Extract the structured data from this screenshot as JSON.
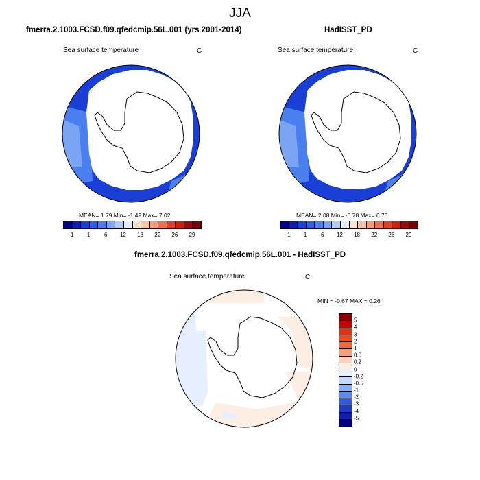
{
  "figure": {
    "title": "JJA"
  },
  "panels": {
    "model": {
      "title": "fmerra.2.1003.FCSD.f09.qfedcmip.56L.001 (yrs 2001-2014)",
      "variable": "Sea surface temperature",
      "units": "C",
      "stats": "MEAN=   1.79  Min=  -1.49  Max=   7.02"
    },
    "obs": {
      "title": "HadISST_PD",
      "variable": "Sea surface temperature",
      "units": "C",
      "stats": "MEAN=   2.08  Min=  -0.78  Max=   6.73"
    },
    "diff": {
      "title": "fmerra.2.1003.FCSD.f09.qfedcmip.56L.001 - HadISST_PD",
      "variable": "Sea surface temperature",
      "units": "C",
      "stats": "MIN =  -0.67 MAX =   0.26"
    }
  },
  "colorbars": {
    "sst": {
      "tick_labels": [
        "-1",
        "1",
        "6",
        "12",
        "18",
        "22",
        "26",
        "29"
      ],
      "colors": [
        "#00008b",
        "#0a1fb0",
        "#1a3fd6",
        "#2a5fe6",
        "#4a7ff0",
        "#7aa5f5",
        "#b0cdf8",
        "#e6efff",
        "#fde2cf",
        "#f9c3a3",
        "#f49c74",
        "#ee6f47",
        "#e44020",
        "#cc200c",
        "#9e0a05",
        "#7a0000"
      ]
    },
    "diff": {
      "tick_labels": [
        "5",
        "4",
        "3",
        "2",
        "1",
        "0.5",
        "0.2",
        "0",
        "-0.2",
        "-0.5",
        "-1",
        "-2",
        "-3",
        "-4",
        "-5"
      ],
      "colors": [
        "#8b0000",
        "#cc0000",
        "#e83010",
        "#f04a1e",
        "#f46836",
        "#f7a07a",
        "#fcd2b8",
        "#fdeee4",
        "#e6f0ff",
        "#c4d9fb",
        "#8ab2f5",
        "#5d8def",
        "#2f5fe0",
        "#1a3cc8",
        "#0a20a8",
        "#00008b"
      ]
    }
  }
}
